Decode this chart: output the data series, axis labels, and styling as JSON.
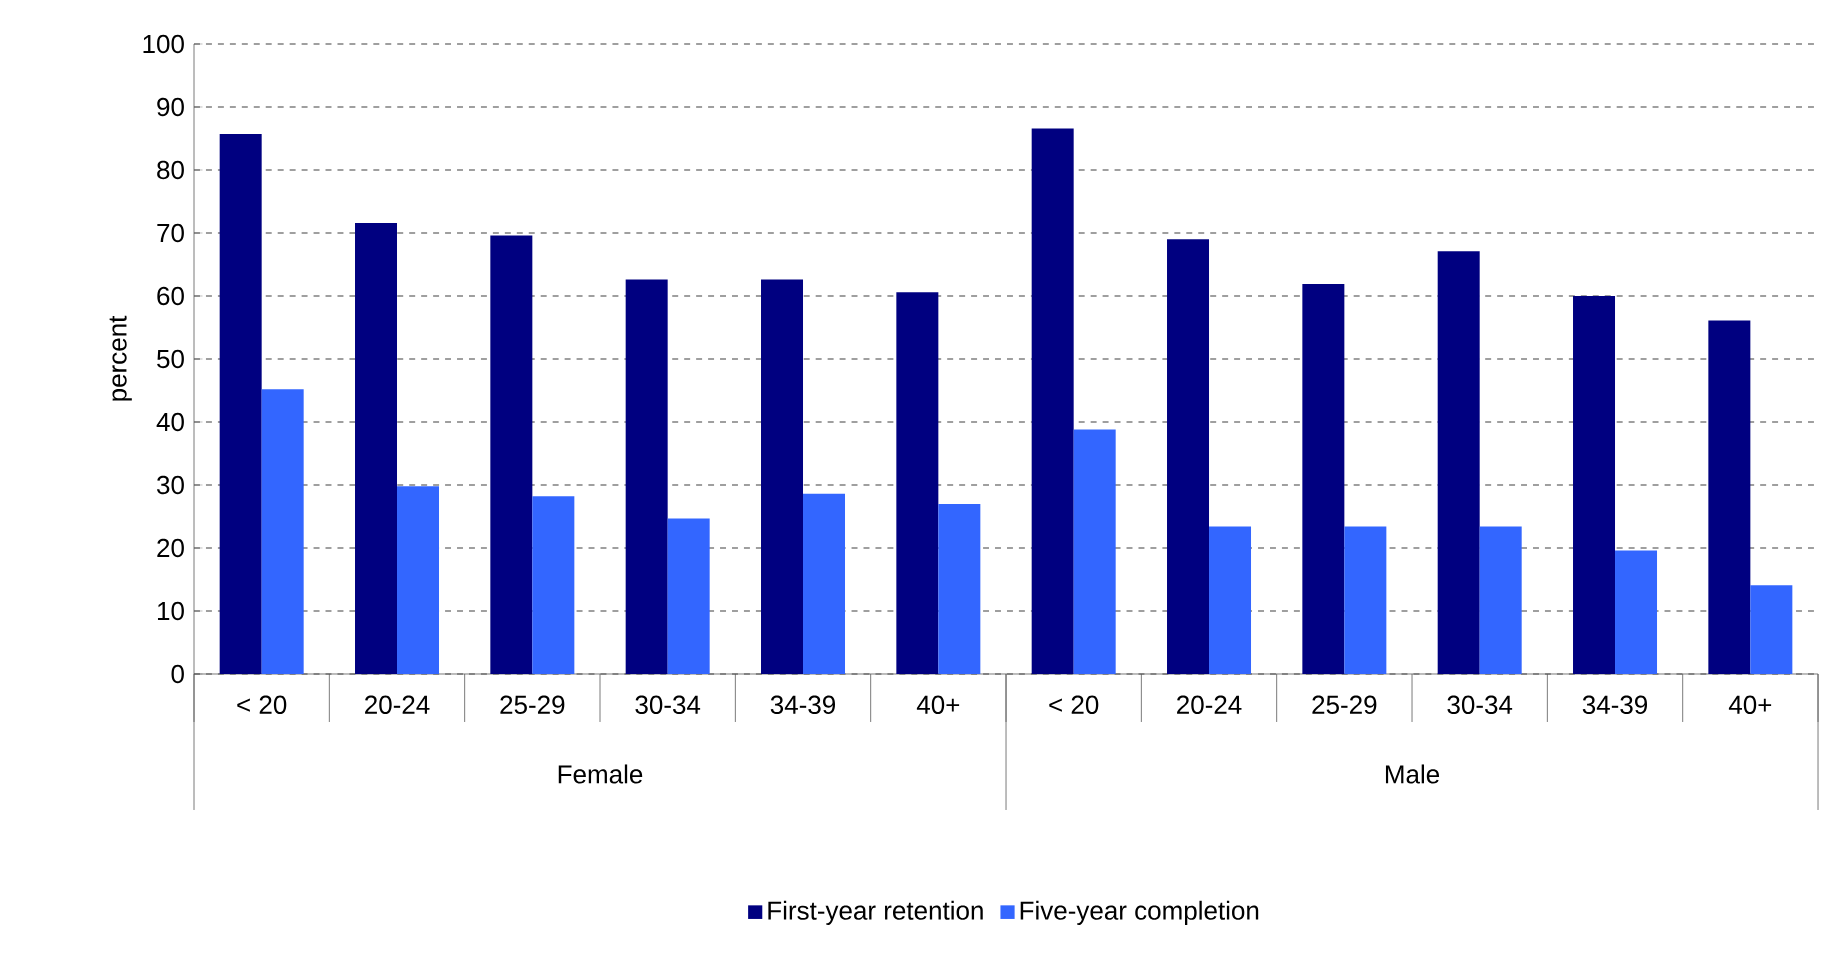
{
  "chart_data": {
    "type": "bar",
    "ylabel": "percent",
    "categories": [
      "< 20",
      "20-24",
      "25-29",
      "30-34",
      "34-39",
      "40+",
      "< 20",
      "20-24",
      "25-29",
      "30-34",
      "34-39",
      "40+"
    ],
    "annotations": [
      "Female",
      "Male"
    ],
    "series": [
      {
        "name": "First-year retention",
        "color": "#000080",
        "values": [
          85.7,
          71.6,
          69.6,
          62.6,
          62.6,
          60.6,
          86.6,
          69.0,
          61.9,
          67.1,
          60.0,
          56.1
        ]
      },
      {
        "name": "Five-year completion",
        "color": "#3366ff",
        "values": [
          45.2,
          29.8,
          28.2,
          24.7,
          28.6,
          27.0,
          38.8,
          23.4,
          23.4,
          23.4,
          19.6,
          14.1
        ]
      }
    ],
    "ylim": [
      0,
      100
    ],
    "yticks": [
      0,
      10,
      20,
      30,
      40,
      50,
      60,
      70,
      80,
      90,
      100
    ],
    "grid": "y",
    "legend": "bottom"
  }
}
